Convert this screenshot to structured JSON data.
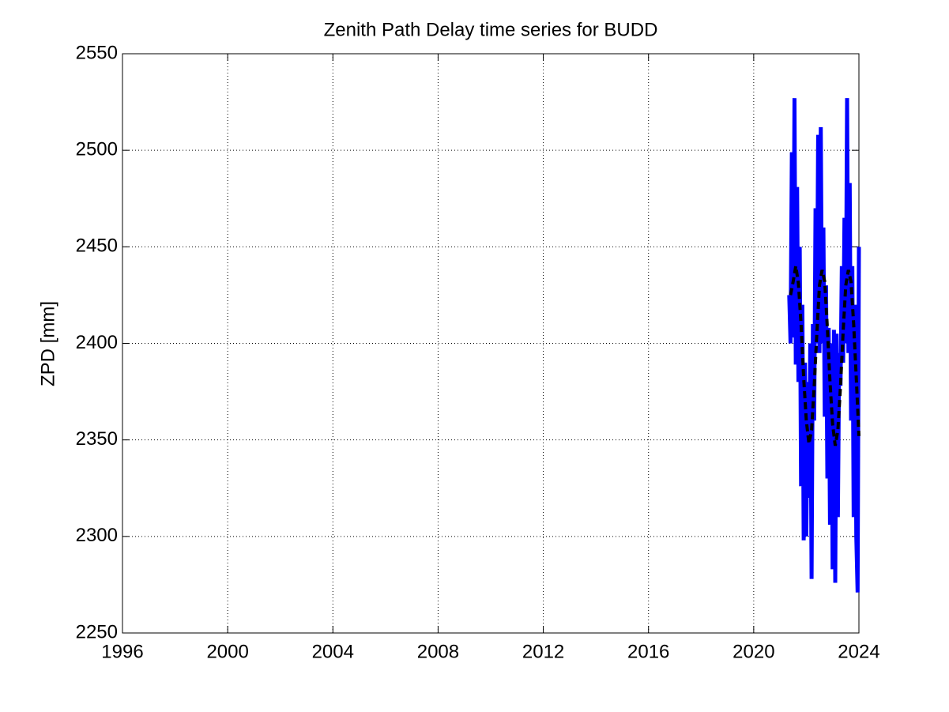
{
  "chart_data": {
    "type": "line",
    "title": "Zenith Path Delay time series for BUDD",
    "ylabel": "ZPD [mm]",
    "xlim": [
      1996,
      2024
    ],
    "xticks": [
      1996,
      2000,
      2004,
      2008,
      2012,
      2016,
      2020,
      2024
    ],
    "ylim": [
      2250,
      2550
    ],
    "yticks": [
      2250,
      2300,
      2350,
      2400,
      2450,
      2500,
      2550
    ],
    "grid": true,
    "series": [
      {
        "color": "#0000ff",
        "dash": false,
        "x": [
          2021.35,
          2021.4,
          2021.45,
          2021.5,
          2021.55,
          2021.6,
          2021.65,
          2021.7,
          2021.75,
          2021.8,
          2021.85,
          2021.9,
          2021.95,
          2022.0,
          2022.05,
          2022.1,
          2022.15,
          2022.2,
          2022.25,
          2022.3,
          2022.35,
          2022.4,
          2022.45,
          2022.5,
          2022.55,
          2022.6,
          2022.65,
          2022.7,
          2022.75,
          2022.8,
          2022.85,
          2022.9,
          2022.95,
          2023.0,
          2023.05,
          2023.1,
          2023.15,
          2023.2,
          2023.25,
          2023.3,
          2023.35,
          2023.4,
          2023.45,
          2023.5,
          2023.55,
          2023.6,
          2023.65,
          2023.7,
          2023.75,
          2023.8,
          2023.85,
          2023.9,
          2023.95,
          2024.0
        ],
        "values": [
          2425,
          2400,
          2499,
          2403,
          2527,
          2389,
          2481,
          2380,
          2450,
          2326,
          2420,
          2298,
          2390,
          2300,
          2380,
          2320,
          2400,
          2278,
          2410,
          2360,
          2470,
          2400,
          2508,
          2395,
          2512,
          2400,
          2460,
          2362,
          2430,
          2330,
          2408,
          2306,
          2400,
          2283,
          2407,
          2276,
          2405,
          2310,
          2395,
          2378,
          2440,
          2390,
          2465,
          2400,
          2527,
          2395,
          2483,
          2360,
          2440,
          2310,
          2420,
          2300,
          2271,
          2450
        ]
      },
      {
        "color": "#000000",
        "dash": true,
        "x": [
          2021.4,
          2021.5,
          2021.6,
          2021.7,
          2021.8,
          2021.9,
          2022.0,
          2022.1,
          2022.2,
          2022.3,
          2022.4,
          2022.5,
          2022.6,
          2022.7,
          2022.8,
          2022.9,
          2023.0,
          2023.1,
          2023.2,
          2023.3,
          2023.4,
          2023.5,
          2023.6,
          2023.7,
          2023.8,
          2023.9,
          2024.0
        ],
        "values": [
          2425,
          2432,
          2440,
          2431,
          2410,
          2382,
          2360,
          2348,
          2355,
          2378,
          2405,
          2430,
          2438,
          2432,
          2408,
          2380,
          2358,
          2347,
          2355,
          2378,
          2406,
          2430,
          2438,
          2432,
          2410,
          2382,
          2352
        ]
      }
    ]
  }
}
